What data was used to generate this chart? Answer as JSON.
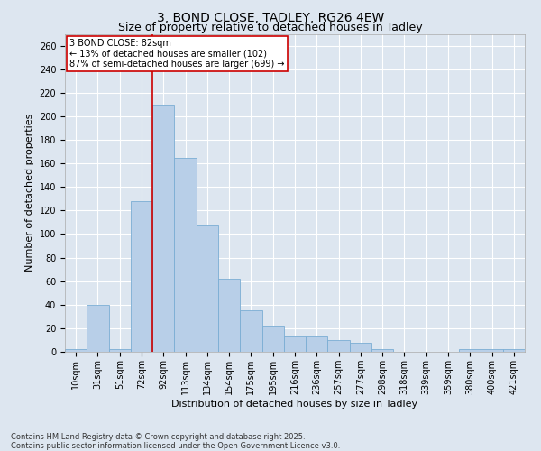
{
  "title1": "3, BOND CLOSE, TADLEY, RG26 4EW",
  "title2": "Size of property relative to detached houses in Tadley",
  "xlabel": "Distribution of detached houses by size in Tadley",
  "ylabel": "Number of detached properties",
  "categories": [
    "10sqm",
    "31sqm",
    "51sqm",
    "72sqm",
    "92sqm",
    "113sqm",
    "134sqm",
    "154sqm",
    "175sqm",
    "195sqm",
    "216sqm",
    "236sqm",
    "257sqm",
    "277sqm",
    "298sqm",
    "318sqm",
    "339sqm",
    "359sqm",
    "380sqm",
    "400sqm",
    "421sqm"
  ],
  "values": [
    2,
    40,
    2,
    128,
    210,
    165,
    108,
    62,
    35,
    22,
    13,
    13,
    10,
    8,
    2,
    0,
    0,
    0,
    2,
    2,
    2
  ],
  "bar_color": "#b8cfe8",
  "bar_edge_color": "#7aadd4",
  "property_line_x": 3.5,
  "annotation_label": "3 BOND CLOSE: 82sqm",
  "annotation_line1": "← 13% of detached houses are smaller (102)",
  "annotation_line2": "87% of semi-detached houses are larger (699) →",
  "red_line_color": "#cc0000",
  "annotation_box_color": "#ffffff",
  "annotation_box_edge": "#cc0000",
  "ylim": [
    0,
    270
  ],
  "yticks": [
    0,
    20,
    40,
    60,
    80,
    100,
    120,
    140,
    160,
    180,
    200,
    220,
    240,
    260
  ],
  "background_color": "#dde6f0",
  "plot_bg_color": "#dde6f0",
  "grid_color": "#ffffff",
  "footer": "Contains HM Land Registry data © Crown copyright and database right 2025.\nContains public sector information licensed under the Open Government Licence v3.0.",
  "title_fontsize": 10,
  "subtitle_fontsize": 9,
  "ylabel_fontsize": 8,
  "xlabel_fontsize": 8,
  "tick_fontsize": 7,
  "annotation_fontsize": 7,
  "footer_fontsize": 6
}
